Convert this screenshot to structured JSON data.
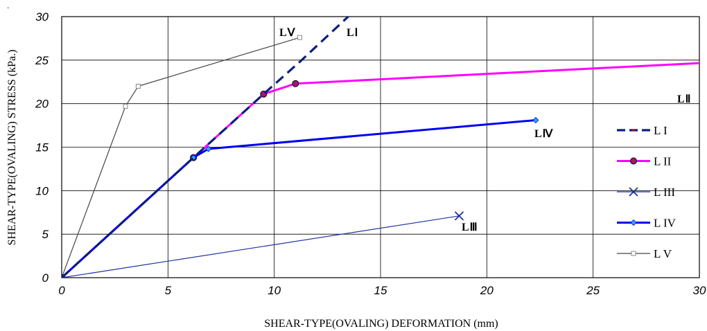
{
  "chart_data": {
    "type": "line",
    "xlabel": "SHEAR-TYPE(OVALING) DEFORMATION (mm)",
    "ylabel": "SHEAR-TYPE(OVALING) STRESS (kPa.)",
    "xlim": [
      0,
      30
    ],
    "ylim": [
      0,
      30
    ],
    "x_ticks": [
      "0",
      "5",
      "10",
      "15",
      "20",
      "25",
      "30"
    ],
    "y_ticks": [
      "0",
      "5",
      "10",
      "15",
      "20",
      "25",
      "30"
    ],
    "grid": true,
    "legend_position": "right",
    "series": [
      {
        "name": "L I",
        "label": "LⅠ",
        "color": "#0a1f7a",
        "dash": "14,8",
        "width": 3.2,
        "marker": "none",
        "x": [
          0,
          6.2,
          9.5,
          11.2,
          13.7
        ],
        "y": [
          0,
          13.8,
          21.1,
          24.8,
          30.5
        ]
      },
      {
        "name": "L II",
        "label": "LⅡ",
        "color": "#ff00ff",
        "dash": "",
        "width": 3,
        "marker": "circle",
        "x": [
          0,
          6.2,
          9.5,
          11.0,
          30.3
        ],
        "y": [
          0,
          13.8,
          21.1,
          22.3,
          24.7
        ]
      },
      {
        "name": "L III",
        "label": "LⅢ",
        "color": "#1f2fa0",
        "dash": "",
        "width": 1.2,
        "marker": "x",
        "x": [
          0,
          18.7
        ],
        "y": [
          0,
          7.1
        ]
      },
      {
        "name": "L IV",
        "label": "LⅣ",
        "color": "#0000ee",
        "dash": "",
        "width": 3,
        "marker": "diamond",
        "x": [
          0,
          6.2,
          6.9,
          22.3
        ],
        "y": [
          0,
          13.8,
          14.8,
          18.1
        ]
      },
      {
        "name": "L V",
        "label": "LⅤ",
        "color": "#444444",
        "dash": "",
        "width": 1.2,
        "marker": "square",
        "x": [
          0,
          3.0,
          3.6,
          11.2
        ],
        "y": [
          0,
          19.7,
          22.0,
          27.6
        ]
      }
    ]
  }
}
